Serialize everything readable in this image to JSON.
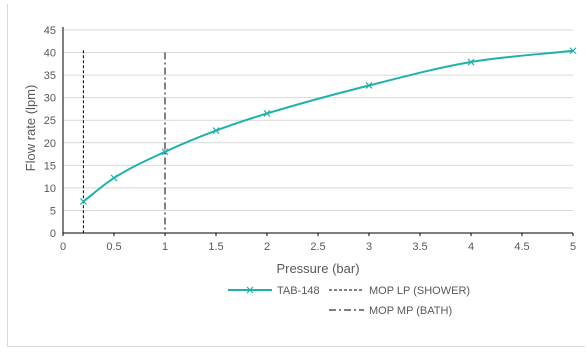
{
  "chart_data": {
    "type": "line",
    "xlabel": "Pressure (bar)",
    "ylabel": "Flow rate (lpm)",
    "xlim": [
      0,
      5
    ],
    "ylim": [
      0,
      45
    ],
    "x_ticks": [
      "0",
      "0.5",
      "1",
      "1.5",
      "2",
      "2.5",
      "3",
      "3.5",
      "4",
      "4.5",
      "5"
    ],
    "y_ticks": [
      "0",
      "5",
      "10",
      "15",
      "20",
      "25",
      "30",
      "35",
      "40",
      "45"
    ],
    "grid": "horizontal",
    "legend_position": "bottom",
    "series": [
      {
        "name": "TAB-148",
        "color": "#20b2aa",
        "marker": "x",
        "x": [
          0.2,
          0.5,
          1,
          1.5,
          2,
          3,
          4,
          5
        ],
        "y": [
          7.0,
          12.2,
          18.0,
          22.7,
          26.5,
          32.7,
          37.9,
          40.4
        ]
      }
    ],
    "vertical_lines": [
      {
        "name": "MOP  LP (SHOWER)",
        "x": 0.2,
        "style": "dashed",
        "color": "#000000",
        "y_top": 40.5
      },
      {
        "name": "MOP  MP (BATH)",
        "x": 1,
        "style": "dashdot",
        "color": "#000000",
        "y_top": 40
      }
    ]
  }
}
